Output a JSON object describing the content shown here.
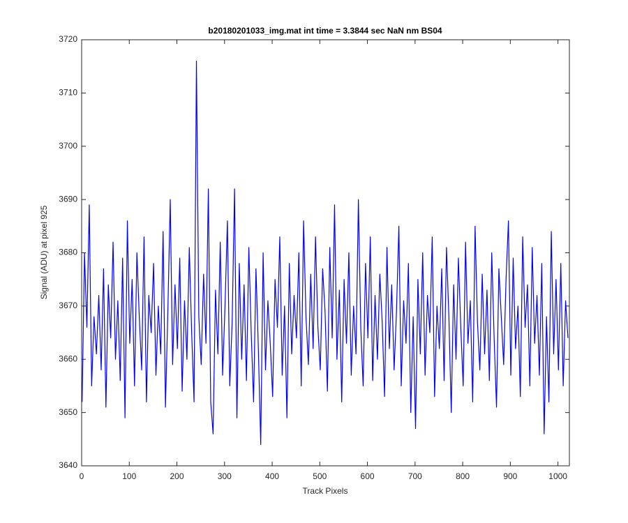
{
  "chart_data": {
    "type": "line",
    "title": "b20180201033_img.mat int time = 3.3844 sec  NaN nm BS04",
    "x_label": "Track Pixels",
    "y_label": "Signal (ADU) at pixel 925",
    "xlim": [
      0,
      1024
    ],
    "xticks": [
      0,
      100,
      200,
      300,
      400,
      500,
      600,
      700,
      800,
      900,
      1000
    ],
    "ylim": [
      3640,
      3720
    ],
    "yticks": [
      3640,
      3650,
      3660,
      3670,
      3680,
      3690,
      3700,
      3710,
      3720
    ],
    "grid": false,
    "x": [
      1,
      6,
      11,
      16,
      21,
      26,
      31,
      36,
      41,
      46,
      51,
      56,
      61,
      66,
      71,
      76,
      81,
      86,
      91,
      96,
      101,
      106,
      111,
      116,
      121,
      126,
      131,
      136,
      141,
      146,
      151,
      156,
      161,
      166,
      171,
      176,
      181,
      186,
      191,
      196,
      201,
      206,
      211,
      216,
      221,
      226,
      231,
      236,
      241,
      246,
      251,
      256,
      261,
      266,
      271,
      276,
      281,
      286,
      291,
      296,
      301,
      306,
      311,
      316,
      321,
      326,
      331,
      336,
      341,
      346,
      351,
      356,
      361,
      366,
      371,
      376,
      381,
      386,
      391,
      396,
      401,
      406,
      411,
      416,
      421,
      426,
      431,
      436,
      441,
      446,
      451,
      456,
      461,
      466,
      471,
      476,
      481,
      486,
      491,
      496,
      501,
      506,
      511,
      516,
      521,
      526,
      531,
      536,
      541,
      546,
      551,
      556,
      561,
      566,
      571,
      576,
      581,
      586,
      591,
      596,
      601,
      606,
      611,
      616,
      621,
      626,
      631,
      636,
      641,
      646,
      651,
      656,
      661,
      666,
      671,
      676,
      681,
      686,
      691,
      696,
      701,
      706,
      711,
      716,
      721,
      726,
      731,
      736,
      741,
      746,
      751,
      756,
      761,
      766,
      771,
      776,
      781,
      786,
      791,
      796,
      801,
      806,
      811,
      816,
      821,
      826,
      831,
      836,
      841,
      846,
      851,
      856,
      861,
      866,
      871,
      876,
      881,
      886,
      891,
      896,
      901,
      906,
      911,
      916,
      921,
      926,
      931,
      936,
      941,
      946,
      951,
      956,
      961,
      966,
      971,
      976,
      981,
      986,
      991,
      996,
      1001,
      1006,
      1011,
      1016,
      1021
    ],
    "series": [
      {
        "color": "#0000ff",
        "values": [
          3652,
          3680,
          3666,
          3689,
          3655,
          3668,
          3661,
          3672,
          3658,
          3677,
          3651,
          3674,
          3664,
          3682,
          3660,
          3671,
          3656,
          3679,
          3649,
          3686,
          3663,
          3675,
          3655,
          3680,
          3668,
          3658,
          3683,
          3652,
          3672,
          3665,
          3678,
          3657,
          3670,
          3661,
          3684,
          3651,
          3669,
          3690,
          3659,
          3674,
          3662,
          3679,
          3654,
          3671,
          3660,
          3681,
          3665,
          3652,
          3716,
          3668,
          3659,
          3676,
          3663,
          3692,
          3652,
          3646,
          3673,
          3661,
          3682,
          3657,
          3670,
          3686,
          3655,
          3667,
          3692,
          3649,
          3678,
          3660,
          3674,
          3656,
          3681,
          3665,
          3652,
          3677,
          3662,
          3644,
          3680,
          3658,
          3671,
          3663,
          3653,
          3675,
          3666,
          3683,
          3657,
          3670,
          3649,
          3678,
          3661,
          3672,
          3664,
          3680,
          3655,
          3686,
          3668,
          3659,
          3676,
          3662,
          3683,
          3666,
          3658,
          3677,
          3669,
          3654,
          3681,
          3664,
          3689,
          3660,
          3673,
          3652,
          3675,
          3663,
          3680,
          3657,
          3670,
          3661,
          3690,
          3666,
          3655,
          3678,
          3664,
          3683,
          3656,
          3672,
          3660,
          3676,
          3667,
          3653,
          3681,
          3662,
          3674,
          3658,
          3669,
          3685,
          3655,
          3671,
          3663,
          3678,
          3650,
          3668,
          3647,
          3675,
          3661,
          3680,
          3657,
          3672,
          3665,
          3683,
          3653,
          3670,
          3662,
          3677,
          3656,
          3681,
          3668,
          3650,
          3674,
          3660,
          3679,
          3666,
          3655,
          3682,
          3663,
          3671,
          3652,
          3685,
          3667,
          3658,
          3676,
          3661,
          3673,
          3656,
          3680,
          3664,
          3651,
          3677,
          3668,
          3659,
          3675,
          3686,
          3657,
          3679,
          3662,
          3670,
          3653,
          3683,
          3666,
          3674,
          3655,
          3681,
          3663,
          3672,
          3657,
          3678,
          3646,
          3668,
          3652,
          3684,
          3661,
          3675,
          3658,
          3678,
          3655,
          3671,
          3664
        ]
      }
    ]
  }
}
